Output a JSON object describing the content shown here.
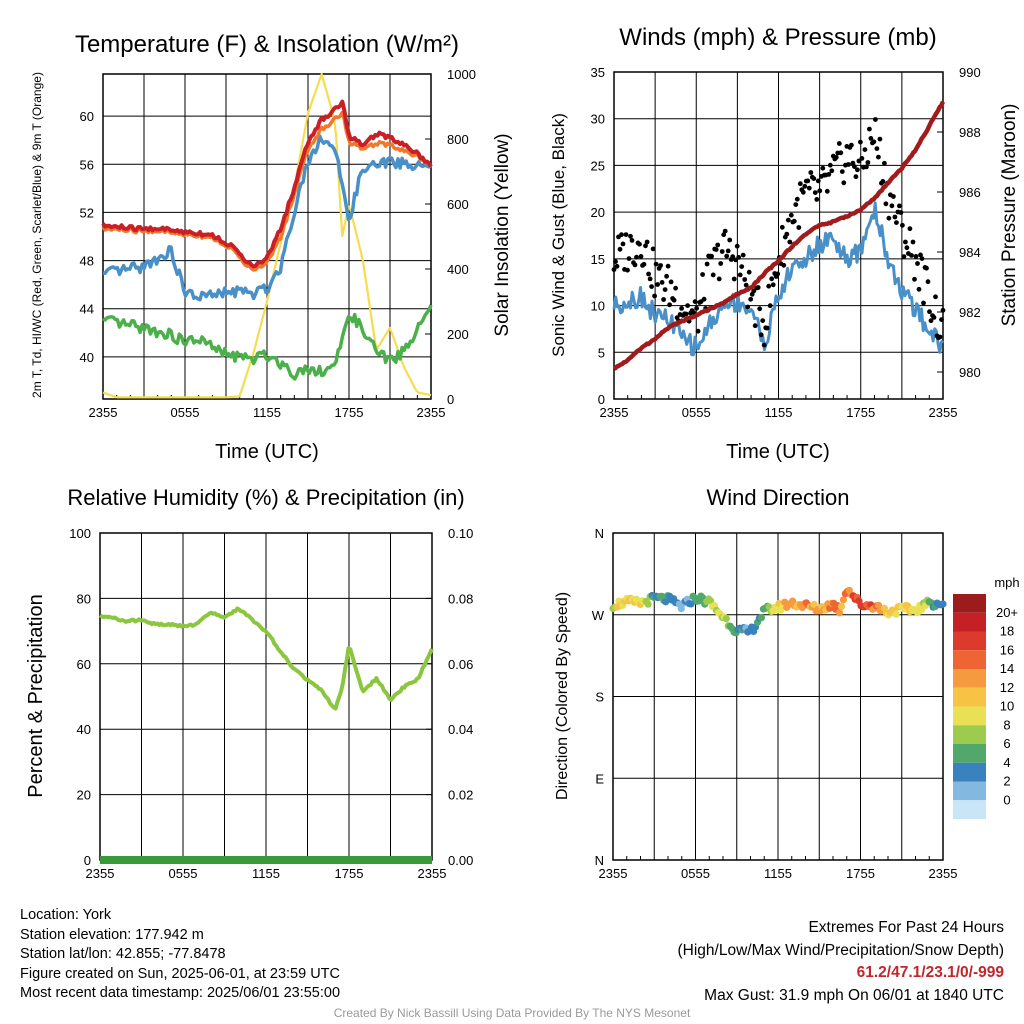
{
  "panels": {
    "temp": {
      "title": "Temperature (F) & Insolation (W/m²)",
      "ylabel_left": "2m T, Td, HI/WC (Red, Green, Scarlet/Blue) & 9m T (Orange)",
      "ylabel_right": "Solar Insolation (Yellow)",
      "xlabel": "Time (UTC)"
    },
    "wind": {
      "title": "Winds (mph) & Pressure (mb)",
      "ylabel_left": "Sonic Wind & Gust (Blue, Black)",
      "ylabel_right": "Station Pressure (Maroon)",
      "xlabel": "Time (UTC)"
    },
    "rh": {
      "title": "Relative Humidity (%) & Precipitation (in)",
      "ylabel_left": "Percent & Precipitation"
    },
    "dir": {
      "title": "Wind Direction",
      "ylabel_left": "Direction (Colored By Speed)",
      "colorbar_title": "mph"
    }
  },
  "footer": {
    "location": "Location: York",
    "elevation": "Station elevation: 177.942 m",
    "latlon": "Station lat/lon: 42.855; -77.8478",
    "created": "Figure created on Sun, 2025-06-01, at 23:59 UTC",
    "recent": "Most recent data timestamp: 2025/06/01 23:55:00",
    "extremes_title": "Extremes For Past 24 Hours",
    "extremes_fields": "(High/Low/Max Wind/Precipitation/Snow Depth)",
    "extremes_values": "61.2/47.1/23.1/0/-999",
    "max_gust": "Max Gust: 31.9 mph On 06/01 at 1840 UTC"
  },
  "credit": "Created By Nick Bassill Using Data Provided By The NYS Mesonet",
  "colors": {
    "temp": "#c91f25",
    "temp_9m": "#f0782a",
    "heat_index": "#4a90c8",
    "dewpoint": "#4bb04a",
    "insolation": "#f5dc50",
    "wind": "#4a90c8",
    "gust": "#000000",
    "pressure": "#a01c1c",
    "rh": "#8cc63e",
    "precip": "#3a9a3a",
    "extremes_values": "#c0262a"
  },
  "chart_data": [
    {
      "type": "line",
      "title": "Temperature (F) & Insolation (W/m²)",
      "xlabel": "Time (UTC)",
      "ylabel": "2m T, Td, HI/WC (Red, Green, Scarlet/Blue) & 9m T (Orange)",
      "ylabel_right": "Solar Insolation (Yellow)",
      "x_ticks": [
        "2355",
        "0555",
        "1155",
        "1755",
        "2355"
      ],
      "y_ticks": [
        40,
        44,
        48,
        52,
        56,
        60
      ],
      "y_right_ticks": [
        0,
        200,
        400,
        600,
        800,
        1000
      ],
      "ylim": [
        36.5,
        63.5
      ],
      "ylim_right": [
        0,
        1000
      ],
      "x_hours": [
        0,
        1,
        2,
        3,
        4,
        5,
        6,
        7,
        8,
        9,
        10,
        11,
        12,
        13,
        14,
        15,
        16,
        17,
        17.5,
        18,
        19,
        20,
        21,
        22,
        23,
        24
      ],
      "series": [
        {
          "name": "2m T",
          "axis": "left",
          "values": [
            50.9,
            50.8,
            50.7,
            50.6,
            50.7,
            50.5,
            50.4,
            50.3,
            50.1,
            49.5,
            48.6,
            47.4,
            48.2,
            50.6,
            54.1,
            57.9,
            59.7,
            60.6,
            61.2,
            58.4,
            57.5,
            58.6,
            58.2,
            57.7,
            56.9,
            55.9
          ]
        },
        {
          "name": "9m T",
          "axis": "left",
          "values": [
            50.6,
            50.6,
            50.5,
            50.4,
            50.5,
            50.3,
            50.2,
            50.1,
            49.9,
            49.3,
            48.3,
            47.1,
            47.8,
            49.9,
            53.6,
            57.3,
            58.9,
            59.8,
            60.3,
            57.9,
            57.2,
            57.8,
            57.6,
            57.2,
            56.7,
            55.9
          ]
        },
        {
          "name": "HI/WC",
          "axis": "left",
          "values": [
            46.8,
            47.1,
            47.3,
            47.5,
            48.2,
            48.8,
            45.3,
            45.0,
            45.1,
            45.3,
            45.5,
            45.2,
            45.7,
            47.5,
            52.2,
            56.3,
            58.3,
            57.2,
            54.0,
            51.5,
            55.6,
            55.9,
            56.2,
            56.1,
            55.8,
            55.9
          ]
        },
        {
          "name": "2m Td",
          "axis": "left",
          "values": [
            43.0,
            42.8,
            42.6,
            42.4,
            42.1,
            41.8,
            41.2,
            41.5,
            40.8,
            40.2,
            40.0,
            39.8,
            40.2,
            39.5,
            38.6,
            39.1,
            38.8,
            39.4,
            41.2,
            43.8,
            42.2,
            40.5,
            39.6,
            40.5,
            42.2,
            44.3
          ]
        },
        {
          "name": "Insolation",
          "axis": "right",
          "values": [
            20,
            5,
            5,
            5,
            5,
            5,
            5,
            5,
            5,
            5,
            8,
            140,
            300,
            480,
            650,
            880,
            1000,
            850,
            500,
            600,
            430,
            150,
            220,
            100,
            20,
            12
          ]
        }
      ]
    },
    {
      "type": "line",
      "title": "Winds (mph) & Pressure (mb)",
      "xlabel": "Time (UTC)",
      "ylabel": "Sonic Wind & Gust (Blue, Black)",
      "ylabel_right": "Station Pressure (Maroon)",
      "x_ticks": [
        "2355",
        "0555",
        "1155",
        "1755",
        "2355"
      ],
      "y_ticks": [
        0,
        5,
        10,
        15,
        20,
        25,
        30,
        35
      ],
      "y_right_ticks": [
        980,
        982,
        984,
        986,
        988,
        990
      ],
      "ylim": [
        0,
        35
      ],
      "ylim_right": [
        979.1,
        990
      ],
      "x_hours": [
        0,
        1,
        2,
        3,
        4,
        5,
        6,
        7,
        8,
        9,
        10,
        11,
        12,
        13,
        14,
        15,
        16,
        17,
        18,
        19,
        20,
        21,
        22,
        23,
        24
      ],
      "series": [
        {
          "name": "Sonic Wind",
          "axis": "left",
          "values": [
            10,
            10.5,
            11,
            9,
            8.5,
            6.5,
            5.5,
            8,
            10,
            10.5,
            9.5,
            6,
            11,
            14,
            15,
            16.5,
            17.5,
            14.5,
            16,
            20.5,
            15,
            11.5,
            9.5,
            7.5,
            5.5
          ]
        },
        {
          "name": "Gust",
          "axis": "left",
          "scatter": true,
          "values": [
            15,
            16,
            17,
            13,
            12,
            10,
            8.5,
            13.5,
            16,
            15,
            11,
            8,
            15,
            19.5,
            22,
            22,
            24,
            26,
            25,
            28.5,
            22,
            18,
            15,
            11,
            7
          ]
        },
        {
          "name": "Station Pressure",
          "axis": "right",
          "values": [
            980.1,
            980.4,
            980.8,
            981.1,
            981.5,
            981.7,
            981.9,
            982.1,
            982.3,
            982.6,
            982.8,
            983.3,
            983.7,
            984.2,
            984.6,
            984.9,
            985.0,
            985.2,
            985.4,
            985.8,
            986.3,
            986.8,
            987.4,
            988.2,
            989.0
          ]
        }
      ]
    },
    {
      "type": "line",
      "title": "Relative Humidity (%) & Precipitation (in)",
      "ylabel": "Percent & Precipitation",
      "x_ticks": [
        "2355",
        "0555",
        "1155",
        "1755",
        "2355"
      ],
      "y_ticks": [
        0,
        20,
        40,
        60,
        80,
        100
      ],
      "y_right_ticks": [
        "0.00",
        "0.02",
        "0.04",
        "0.06",
        "0.08",
        "0.10"
      ],
      "ylim": [
        0,
        100
      ],
      "ylim_right": [
        0,
        0.1
      ],
      "x_hours": [
        0,
        1,
        2,
        3,
        4,
        5,
        6,
        7,
        8,
        9,
        10,
        11,
        12,
        13,
        14,
        15,
        16,
        17,
        17.5,
        18,
        19,
        20,
        21,
        22,
        23,
        24
      ],
      "series": [
        {
          "name": "RH",
          "axis": "left",
          "values": [
            74.5,
            74,
            73,
            73.5,
            72,
            72,
            71.5,
            72,
            76,
            74,
            77,
            73.5,
            70,
            64,
            58.5,
            55,
            52,
            46,
            52.5,
            65.5,
            51.5,
            55.5,
            49,
            53,
            55.5,
            64.5
          ]
        },
        {
          "name": "Precipitation",
          "axis": "right",
          "values": [
            0,
            0,
            0,
            0,
            0,
            0,
            0,
            0,
            0,
            0,
            0,
            0,
            0,
            0,
            0,
            0,
            0,
            0,
            0,
            0,
            0,
            0,
            0,
            0,
            0,
            0
          ]
        }
      ]
    },
    {
      "type": "scatter",
      "title": "Wind Direction",
      "ylabel": "Direction (Colored By Speed)",
      "x_ticks": [
        "2355",
        "0555",
        "1155",
        "1755",
        "2355"
      ],
      "y_ticks": [
        "N",
        "E",
        "S",
        "W",
        "N"
      ],
      "ylim": [
        0,
        360
      ],
      "x_hours": [
        0,
        1,
        2,
        3,
        4,
        5,
        6,
        7,
        8,
        9,
        10,
        11,
        12,
        13,
        14,
        15,
        16,
        16.5,
        17,
        18,
        19,
        20,
        21,
        22,
        23,
        24
      ],
      "series": [
        {
          "name": "Direction",
          "values": [
            281,
            284,
            283,
            288,
            287,
            279,
            289,
            284,
            268,
            252,
            251,
            274,
            278,
            283,
            280,
            276,
            282,
            275,
            300,
            281,
            280,
            273,
            276,
            275,
            283,
            282
          ]
        },
        {
          "name": "Speed",
          "values": [
            11,
            12,
            11,
            6,
            7,
            3,
            7,
            9,
            10,
            6,
            4,
            8,
            12,
            14,
            16,
            14,
            17,
            14,
            16,
            18,
            17,
            12,
            12,
            11,
            8,
            4
          ]
        }
      ],
      "colorbar": {
        "title": "mph",
        "labels": [
          "20+",
          "18",
          "16",
          "14",
          "12",
          "10",
          "8",
          "6",
          "4",
          "2",
          "0"
        ],
        "colors": [
          "#9c1c1e",
          "#c42026",
          "#dc3a2a",
          "#ee6533",
          "#f59a3e",
          "#f6c344",
          "#e8e156",
          "#9ccb4e",
          "#52a86a",
          "#3a82bd",
          "#83b9e0",
          "#c9e6f6"
        ]
      }
    }
  ]
}
